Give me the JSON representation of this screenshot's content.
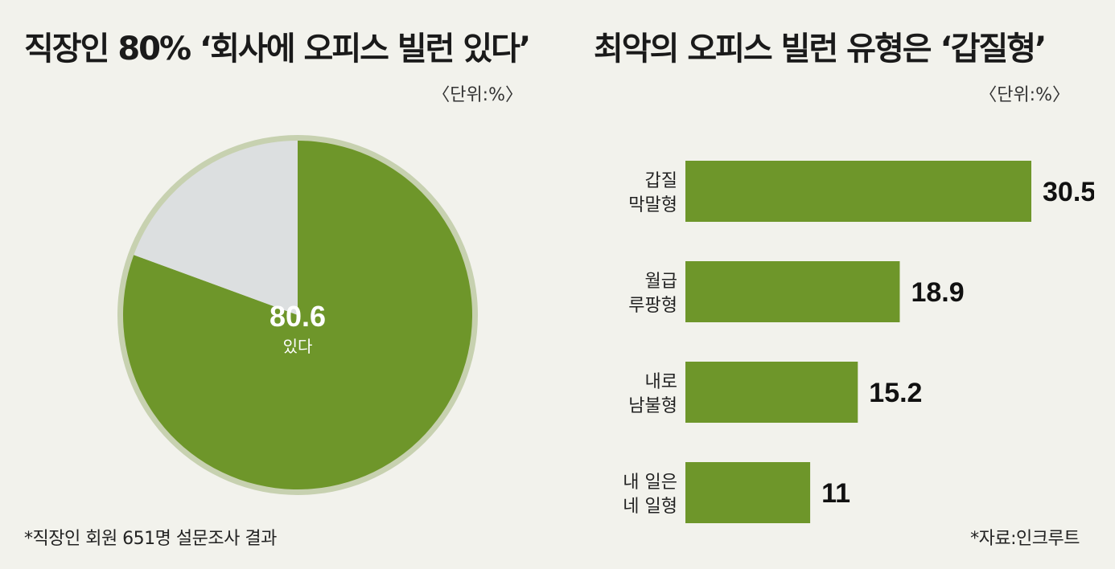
{
  "left": {
    "title": "직장인 80% ‘회사에 오피스 빌런 있다’",
    "unit": "〈단위:%〉",
    "footnote": "*직장인 회원 651명 설문조사 결과"
  },
  "right": {
    "title": "최악의 오피스 빌런 유형은 ‘갑질형’",
    "unit": "〈단위:%〉",
    "source": "*자료:인크루트"
  },
  "colors": {
    "green": "#6e962a",
    "gray_slice": "#dcdfe0",
    "ring": "#c7d1b0",
    "background": "#f2f2ec"
  },
  "chart_data": [
    {
      "type": "pie",
      "slices": [
        {
          "label": "있다",
          "value": 80.6,
          "color": "#6e962a"
        },
        {
          "value": 19.4,
          "color": "#dcdfe0"
        }
      ],
      "annotation_value": "80.6",
      "annotation_label": "있다"
    },
    {
      "type": "bar",
      "orientation": "horizontal",
      "categories": [
        [
          "갑질",
          "막말형"
        ],
        [
          "월급",
          "루팡형"
        ],
        [
          "내로",
          "남불형"
        ],
        [
          "내 일은",
          "네 일형"
        ]
      ],
      "values": [
        30.5,
        18.9,
        15.2,
        11
      ],
      "value_labels": [
        "30.5",
        "18.9",
        "15.2",
        "11"
      ],
      "xlim": [
        0,
        30.5
      ],
      "color": "#6e962a"
    }
  ]
}
